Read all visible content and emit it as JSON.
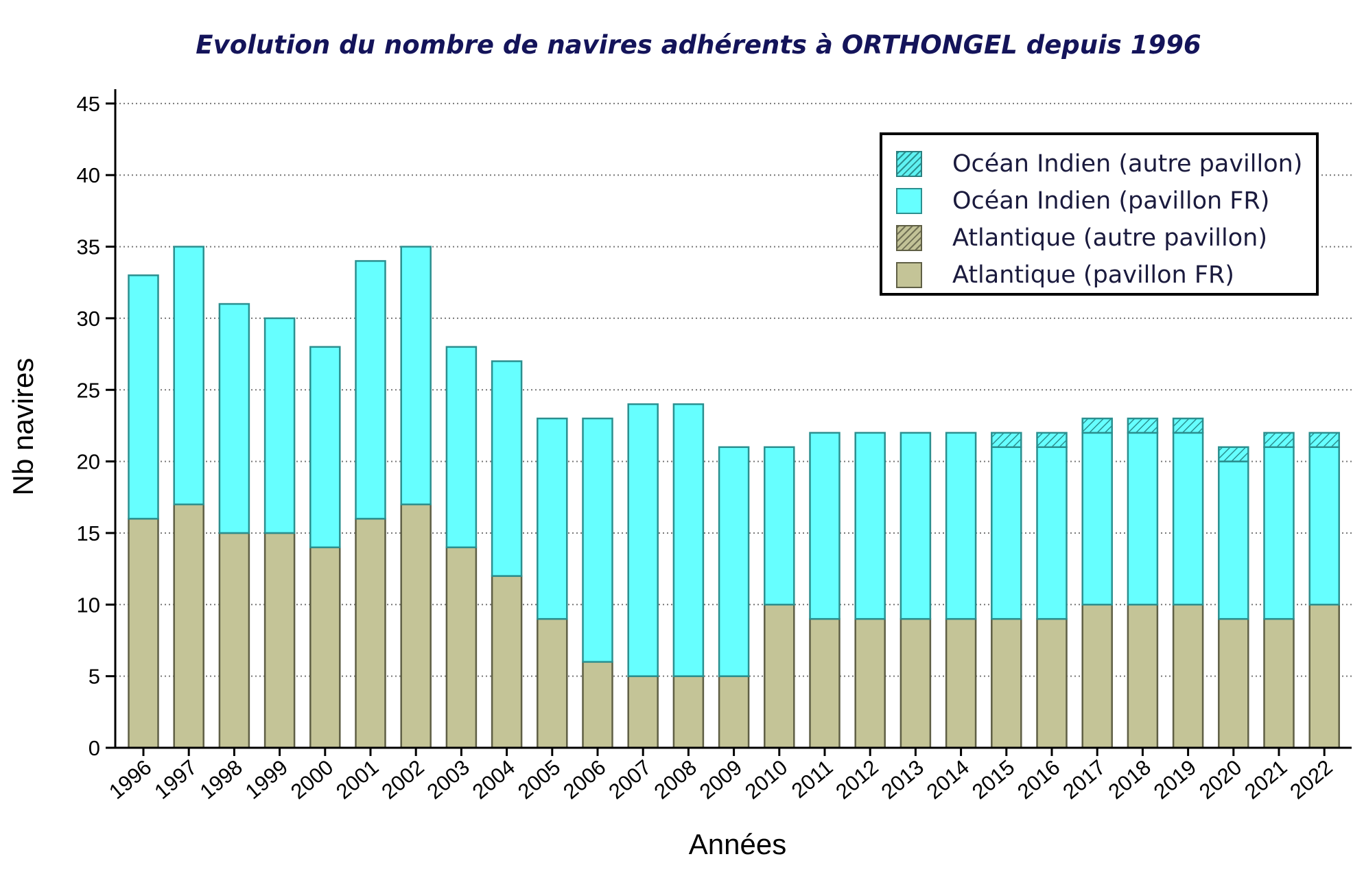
{
  "chart_data": {
    "type": "bar",
    "stacked": true,
    "title": "Evolution du nombre de navires adhérents à ORTHONGEL depuis 1996",
    "xlabel": "Années",
    "ylabel": "Nb navires",
    "ylim": [
      0,
      46
    ],
    "yticks": [
      0,
      5,
      10,
      15,
      20,
      25,
      30,
      35,
      40,
      45
    ],
    "grid": "horizontal dotted",
    "legend_position": "top-right",
    "categories": [
      "1996",
      "1997",
      "1998",
      "1999",
      "2000",
      "2001",
      "2002",
      "2003",
      "2004",
      "2005",
      "2006",
      "2007",
      "2008",
      "2009",
      "2010",
      "2011",
      "2012",
      "2013",
      "2014",
      "2015",
      "2016",
      "2017",
      "2018",
      "2019",
      "2020",
      "2021",
      "2022"
    ],
    "series": [
      {
        "name": "Atlantique (pavillon FR)",
        "color": "#c4c497",
        "stroke": "#5f5f45",
        "hatch": false,
        "values": [
          16,
          17,
          15,
          15,
          14,
          16,
          17,
          14,
          12,
          9,
          6,
          5,
          5,
          5,
          10,
          9,
          9,
          9,
          9,
          9,
          9,
          10,
          10,
          10,
          9,
          9,
          10
        ]
      },
      {
        "name": "Atlantique (autre pavillon)",
        "color": "#c4c497",
        "stroke": "#5f5f45",
        "hatch": true,
        "values": [
          0,
          0,
          0,
          0,
          0,
          0,
          0,
          0,
          0,
          0,
          0,
          0,
          0,
          0,
          0,
          0,
          0,
          0,
          0,
          0,
          0,
          0,
          0,
          0,
          0,
          0,
          0
        ]
      },
      {
        "name": "Océan Indien (pavillon FR)",
        "color": "#66ffff",
        "stroke": "#2b8f8f",
        "hatch": false,
        "values": [
          17,
          18,
          16,
          15,
          14,
          18,
          18,
          14,
          15,
          14,
          17,
          19,
          19,
          16,
          11,
          13,
          13,
          13,
          13,
          12,
          12,
          12,
          12,
          12,
          11,
          12,
          11
        ]
      },
      {
        "name": "Océan Indien (autre pavillon)",
        "color": "#66ffff",
        "stroke": "#2b8f8f",
        "hatch": true,
        "values": [
          0,
          0,
          0,
          0,
          0,
          0,
          0,
          0,
          0,
          0,
          0,
          0,
          0,
          0,
          0,
          0,
          0,
          0,
          0,
          1,
          1,
          1,
          1,
          1,
          1,
          1,
          1
        ]
      }
    ],
    "legend_order": [
      "Océan Indien (autre pavillon)",
      "Océan Indien (pavillon FR)",
      "Atlantique (autre pavillon)",
      "Atlantique (pavillon FR)"
    ]
  }
}
